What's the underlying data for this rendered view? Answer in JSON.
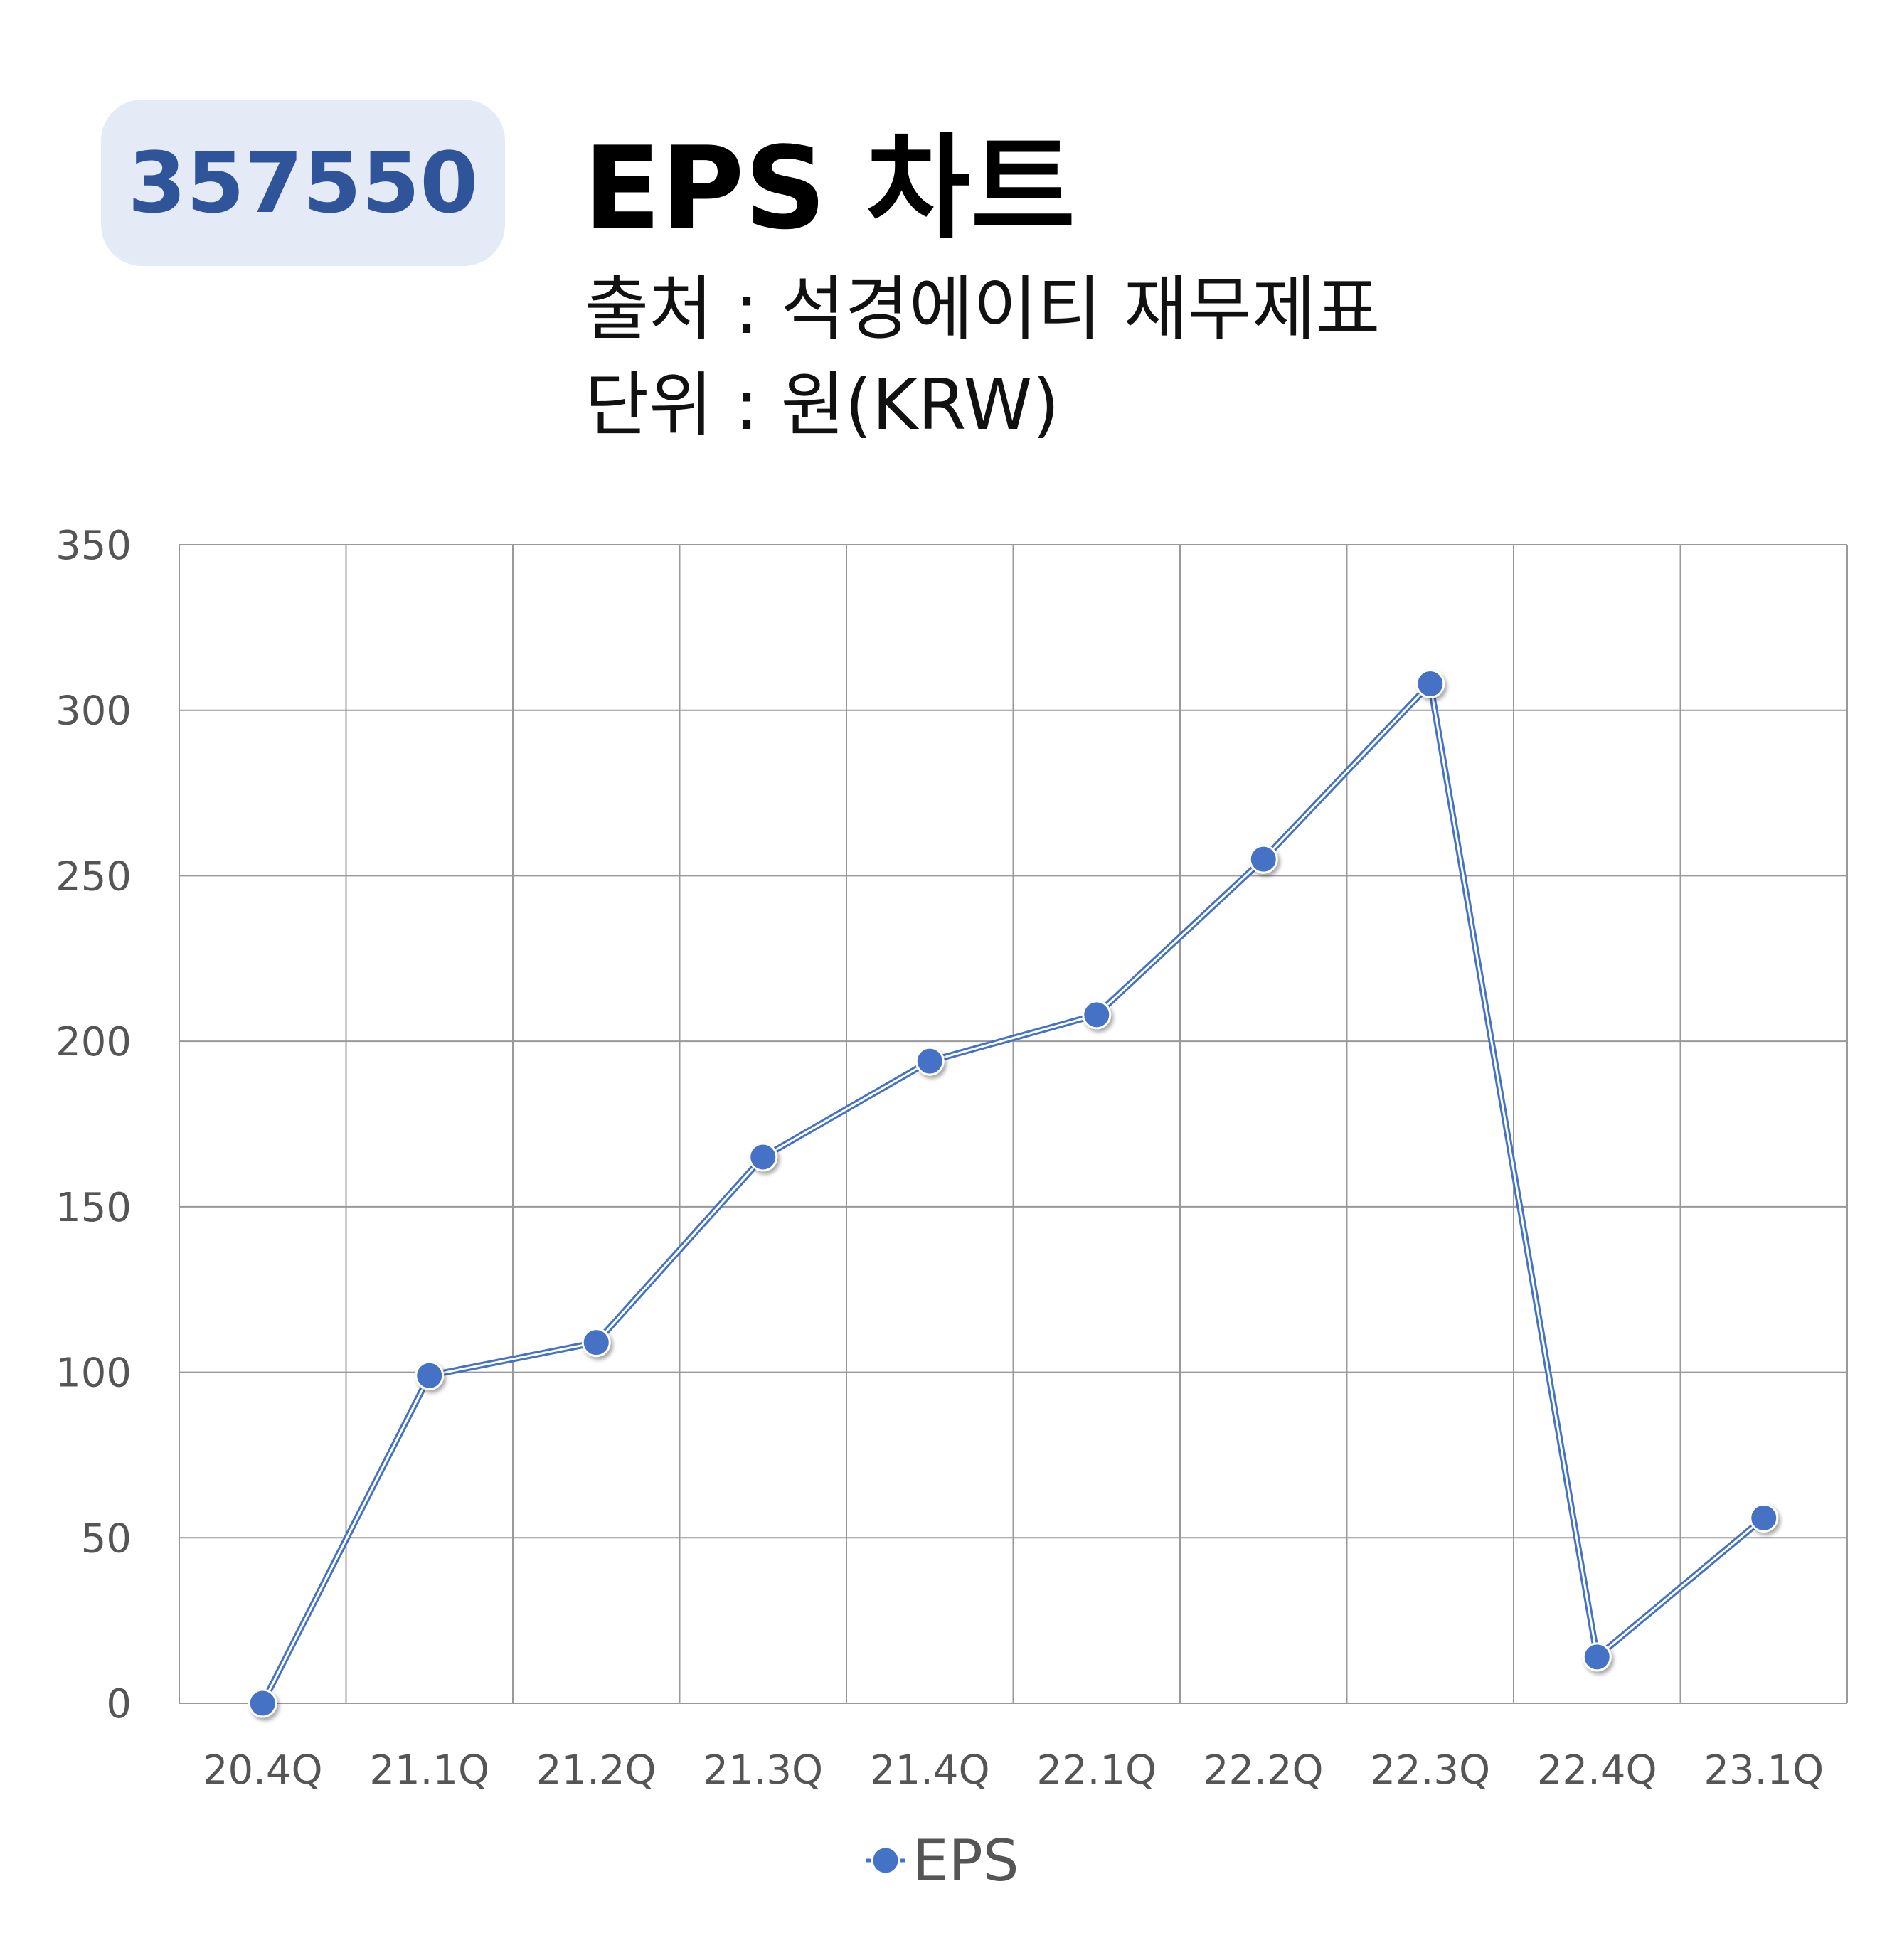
{
  "header": {
    "code": "357550",
    "title": "EPS 차트",
    "source": "출처 : 석경에이티 재무제표",
    "unit": "단위 : 원(KRW)"
  },
  "colors": {
    "badge_bg": "#e4eaf6",
    "badge_text": "#30549a",
    "series": "#4472c4",
    "grid": "#999999"
  },
  "chart_data": {
    "type": "line",
    "categories": [
      "20.4Q",
      "21.1Q",
      "21.2Q",
      "21.3Q",
      "21.4Q",
      "22.1Q",
      "22.2Q",
      "22.3Q",
      "22.4Q",
      "23.1Q"
    ],
    "series": [
      {
        "name": "EPS",
        "values": [
          0,
          99,
          109,
          165,
          194,
          208,
          255,
          308,
          14,
          56
        ]
      }
    ],
    "yticks": [
      "0",
      "50",
      "100",
      "150",
      "200",
      "250",
      "300",
      "350"
    ],
    "ylim": [
      0,
      350
    ],
    "grid": true,
    "legend": "bottom-center"
  }
}
